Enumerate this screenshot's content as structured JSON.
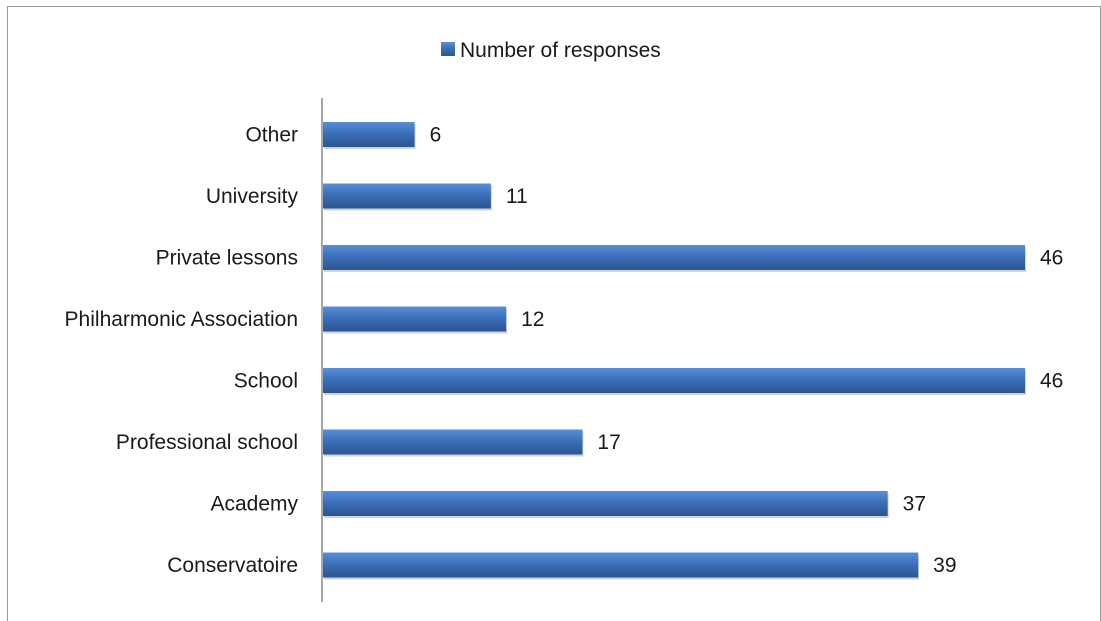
{
  "chart_data": {
    "type": "bar",
    "orientation": "horizontal",
    "categories": [
      "Other",
      "University",
      "Private lessons",
      "Philharmonic Association",
      "School",
      "Professional school",
      "Academy",
      "Conservatoire"
    ],
    "series": [
      {
        "name": "Number of responses",
        "values": [
          6,
          11,
          46,
          12,
          46,
          17,
          37,
          39
        ],
        "color": "#3b6fba"
      }
    ],
    "xlim": [
      0,
      46
    ],
    "grid": false,
    "legend_position": "top",
    "data_labels": true
  }
}
